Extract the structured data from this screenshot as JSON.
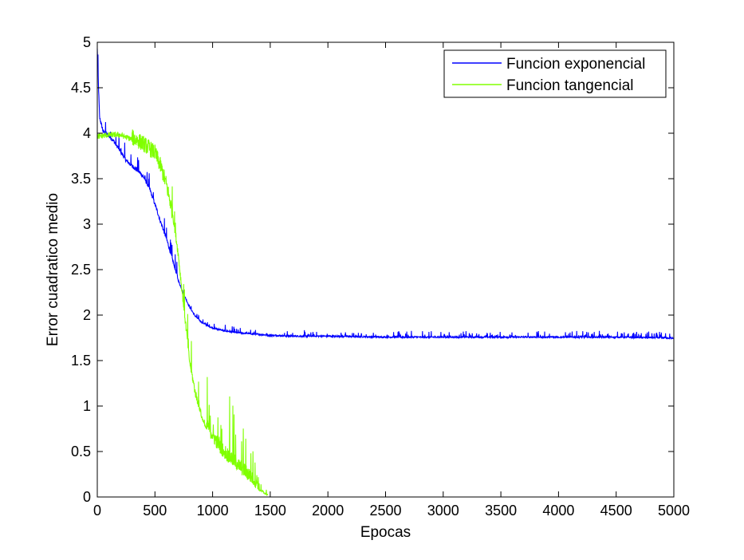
{
  "chart_data": {
    "type": "line",
    "title": "",
    "xlabel": "Epocas",
    "ylabel": "Error cuadratico medio",
    "xlim": [
      0,
      5000
    ],
    "ylim": [
      0,
      5
    ],
    "xticks": [
      0,
      500,
      1000,
      1500,
      2000,
      2500,
      3000,
      3500,
      4000,
      4500,
      5000
    ],
    "yticks": [
      0,
      0.5,
      1,
      1.5,
      2,
      2.5,
      3,
      3.5,
      4,
      4.5,
      5
    ],
    "xtick_labels": [
      "0",
      "500",
      "1000",
      "1500",
      "2000",
      "2500",
      "3000",
      "3500",
      "4000",
      "4500",
      "5000"
    ],
    "ytick_labels": [
      "0",
      "0.5",
      "1",
      "1.5",
      "2",
      "2.5",
      "3",
      "3.5",
      "4",
      "4.5",
      "5"
    ],
    "grid": false,
    "legend_position": "top-right",
    "series": [
      {
        "name": "Funcion exponencial",
        "color": "#0000ff",
        "x": [
          0,
          20,
          50,
          100,
          150,
          200,
          250,
          300,
          350,
          400,
          450,
          500,
          550,
          600,
          650,
          700,
          750,
          800,
          850,
          900,
          950,
          1000,
          1100,
          1200,
          1300,
          1400,
          1500,
          1700,
          2000,
          2500,
          3000,
          3500,
          4000,
          4500,
          5000
        ],
        "y": [
          4.9,
          4.15,
          4.0,
          3.95,
          3.88,
          3.78,
          3.68,
          3.62,
          3.57,
          3.5,
          3.38,
          3.2,
          3.0,
          2.82,
          2.6,
          2.38,
          2.22,
          2.08,
          1.98,
          1.92,
          1.88,
          1.85,
          1.82,
          1.8,
          1.79,
          1.78,
          1.77,
          1.76,
          1.76,
          1.75,
          1.75,
          1.75,
          1.75,
          1.75,
          1.74
        ],
        "noise": 0.04
      },
      {
        "name": "Funcion tangencial",
        "color": "#80ff00",
        "x": [
          0,
          50,
          100,
          200,
          300,
          400,
          500,
          550,
          600,
          650,
          700,
          720,
          750,
          780,
          800,
          850,
          900,
          950,
          1000,
          1050,
          1100,
          1150,
          1200,
          1250,
          1300,
          1350,
          1400,
          1450,
          1480
        ],
        "y": [
          3.95,
          3.96,
          3.97,
          3.97,
          3.92,
          3.85,
          3.75,
          3.6,
          3.4,
          3.1,
          2.65,
          2.4,
          2.05,
          1.7,
          1.45,
          1.1,
          0.88,
          0.72,
          0.6,
          0.5,
          0.42,
          0.36,
          0.3,
          0.24,
          0.18,
          0.12,
          0.07,
          0.03,
          0.01
        ],
        "noise": 0.12
      }
    ]
  }
}
